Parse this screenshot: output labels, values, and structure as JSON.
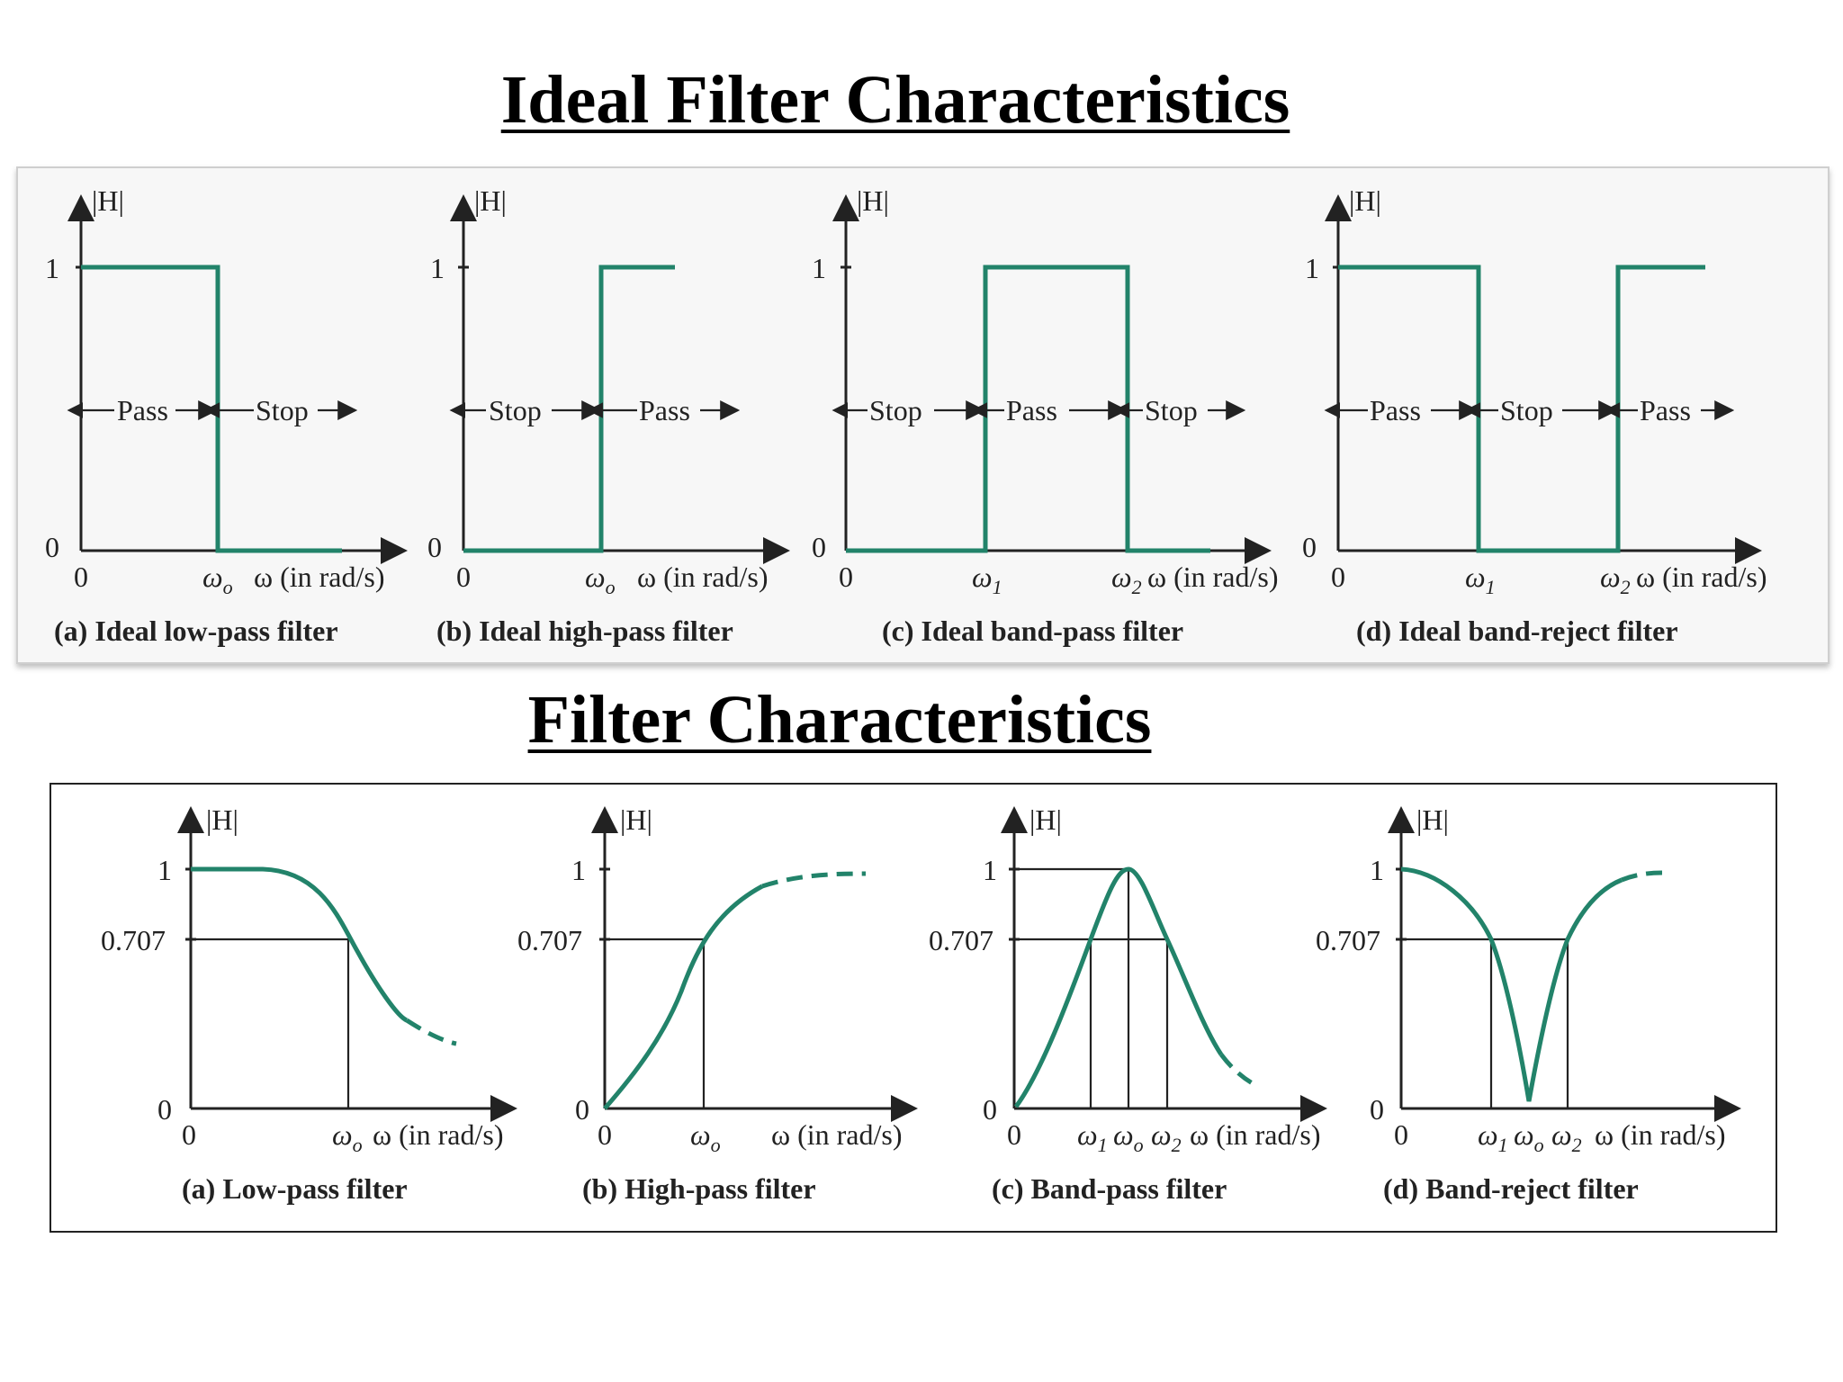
{
  "titles": {
    "ideal": "Ideal Filter Characteristics",
    "real": "Filter Characteristics"
  },
  "ideal": {
    "ylabel": "|H|",
    "y1": "1",
    "y0": "0",
    "x0": "0",
    "xunit": "ω (in rad/s)",
    "w0": "ω",
    "w0sub": "o",
    "w1": "ω",
    "w1sub": "1",
    "w2": "ω",
    "w2sub": "2",
    "pass": "Pass",
    "stop": "Stop",
    "captions": [
      "(a)  Ideal low-pass filter",
      "(b)  Ideal high-pass filter",
      "(c)  Ideal band-pass filter",
      "(d)  Ideal band-reject filter"
    ]
  },
  "real": {
    "ylabel": "|H|",
    "y1": "1",
    "y707": "0.707",
    "y0": "0",
    "x0": "0",
    "xunit": "ω (in rad/s)",
    "w0": "ω",
    "w0sub": "o",
    "w1": "ω",
    "w1sub": "1",
    "w2": "ω",
    "w2sub": "2",
    "captions": [
      "(a)  Low-pass filter",
      "(b)  High-pass filter",
      "(c)  Band-pass filter",
      "(d)  Band-reject filter"
    ]
  },
  "colors": {
    "curve": "#22836a",
    "axis": "#222222"
  }
}
